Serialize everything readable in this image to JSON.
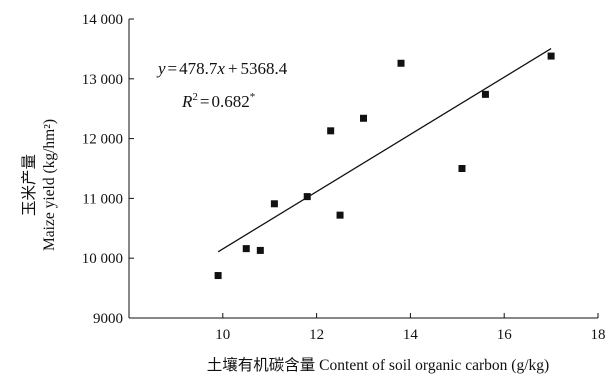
{
  "chart_data": {
    "type": "scatter",
    "xlabel": "土壤有机碳含量 Content of soil organic carbon (g/kg)",
    "ylabel_cn": "玉米产量",
    "ylabel_en": "Maize yield (kg/hm²)",
    "xlim": [
      8,
      18
    ],
    "ylim": [
      9000,
      14000
    ],
    "x_ticks": [
      10,
      12,
      14,
      16,
      18
    ],
    "y_ticks": [
      9000,
      10000,
      11000,
      12000,
      13000,
      14000
    ],
    "x_tick_labels": [
      "10",
      "12",
      "14",
      "16",
      "18"
    ],
    "y_tick_labels": [
      "9000",
      "10 000",
      "11 000",
      "12 000",
      "13 000",
      "14 000"
    ],
    "points": [
      {
        "x": 9.9,
        "y": 9710
      },
      {
        "x": 10.5,
        "y": 10160
      },
      {
        "x": 10.8,
        "y": 10130
      },
      {
        "x": 11.1,
        "y": 10910
      },
      {
        "x": 11.8,
        "y": 11030
      },
      {
        "x": 12.3,
        "y": 12130
      },
      {
        "x": 12.5,
        "y": 10720
      },
      {
        "x": 13.0,
        "y": 12340
      },
      {
        "x": 13.8,
        "y": 13260
      },
      {
        "x": 15.1,
        "y": 11500
      },
      {
        "x": 15.6,
        "y": 12740
      },
      {
        "x": 17.0,
        "y": 13380
      }
    ],
    "trendline": {
      "slope": 478.7,
      "intercept": 5368.4,
      "x_range": [
        9.9,
        17.0
      ]
    },
    "equation": {
      "y_var": "y",
      "equals": "=",
      "slope": "478.7",
      "x_var": "x",
      "plus": "+",
      "intercept": "5368.4",
      "r_var": "R",
      "r_exp": "2",
      "r_val": "0.682",
      "sig": "*"
    },
    "grid": false,
    "legend": "none"
  }
}
